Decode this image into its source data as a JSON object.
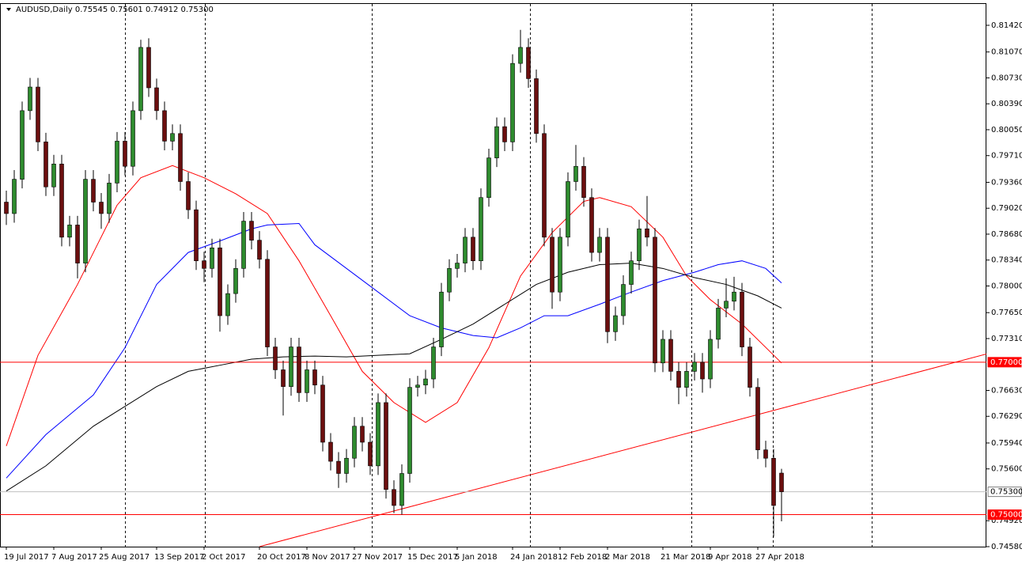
{
  "chart_data": {
    "type": "candlestick",
    "title": "AUDUSD,Daily  0.75545 0.75601 0.74912 0.75300",
    "categories": [
      "19 Jul 2017",
      null,
      null,
      null,
      null,
      null,
      "7 Aug 2017",
      null,
      null,
      null,
      null,
      null,
      "25 Aug 2017",
      null,
      null,
      null,
      null,
      null,
      null,
      "13 Sep 2017",
      null,
      null,
      null,
      null,
      null,
      "2 Oct 2017",
      null,
      null,
      null,
      null,
      null,
      null,
      "20 Oct 2017",
      null,
      null,
      null,
      null,
      null,
      "8 Nov 2017",
      null,
      null,
      null,
      null,
      null,
      "27 Nov 2017",
      null,
      null,
      null,
      null,
      null,
      null,
      "15 Dec 2017",
      null,
      null,
      null,
      null,
      null,
      "5 Jan 2018",
      null,
      null,
      null,
      null,
      null,
      null,
      "24 Jan 2018",
      null,
      null,
      null,
      null,
      null,
      "12 Feb 2018",
      null,
      null,
      null,
      null,
      null,
      "2 Mar 2018",
      null,
      null,
      null,
      null,
      null,
      null,
      "21 Mar 2018",
      null,
      null,
      null,
      null,
      null,
      "9 Apr 2018",
      null,
      null,
      null,
      null,
      null,
      "27 Apr 2018",
      null,
      null,
      null
    ],
    "open": [
      0.791,
      0.7895,
      0.794,
      0.803,
      0.8061,
      0.7989,
      0.793,
      0.796,
      0.7864,
      0.788,
      0.783,
      0.794,
      0.791,
      0.7895,
      0.7935,
      0.799,
      0.7957,
      0.803,
      0.8113,
      0.806,
      0.803,
      0.799,
      0.8,
      0.7937,
      0.79,
      0.7833,
      0.7823,
      0.785,
      0.7761,
      0.779,
      0.7823,
      0.7885,
      0.786,
      0.7835,
      0.772,
      0.769,
      0.7668,
      0.772,
      0.766,
      0.769,
      0.767,
      0.7595,
      0.757,
      0.7554,
      0.7574,
      0.7616,
      0.7595,
      0.7564,
      0.7647,
      0.7533,
      0.7512,
      0.7554,
      0.7667,
      0.767,
      0.7678,
      0.772,
      0.7792,
      0.7823,
      0.783,
      0.7864,
      0.7833,
      0.7916,
      0.7968,
      0.8009,
      0.7989,
      0.8092,
      0.8113,
      0.8072,
      0.8,
      0.7864,
      0.7792,
      0.7864,
      0.7937,
      0.7957,
      0.7916,
      0.7844,
      0.7864,
      0.774,
      0.7761,
      0.7802,
      0.7833,
      0.7875,
      0.7864,
      0.7699,
      0.773,
      0.7688,
      0.7667,
      0.7688,
      0.77,
      0.7678,
      0.773,
      0.7771,
      0.778,
      0.7792,
      0.772,
      0.7667,
      0.7585,
      0.7574,
      0.75545
    ],
    "high": [
      0.7925,
      0.7952,
      0.8042,
      0.8073,
      0.8073,
      0.8001,
      0.7972,
      0.7972,
      0.7892,
      0.7892,
      0.7952,
      0.7952,
      0.7922,
      0.7947,
      0.8002,
      0.8002,
      0.8042,
      0.8123,
      0.8125,
      0.8072,
      0.8042,
      0.8012,
      0.8012,
      0.7949,
      0.7912,
      0.7845,
      0.7862,
      0.7862,
      0.7802,
      0.7835,
      0.7897,
      0.7897,
      0.7872,
      0.7847,
      0.7732,
      0.7702,
      0.7732,
      0.7732,
      0.7702,
      0.7702,
      0.7682,
      0.7607,
      0.7582,
      0.7586,
      0.7628,
      0.7628,
      0.7607,
      0.7659,
      0.7659,
      0.7545,
      0.7566,
      0.7679,
      0.7682,
      0.769,
      0.7732,
      0.7804,
      0.7835,
      0.7842,
      0.7876,
      0.7876,
      0.7928,
      0.798,
      0.8021,
      0.8021,
      0.8104,
      0.8136,
      0.8125,
      0.8084,
      0.8012,
      0.7876,
      0.7876,
      0.7949,
      0.7985,
      0.7969,
      0.7928,
      0.7876,
      0.7876,
      0.7773,
      0.7814,
      0.7845,
      0.7887,
      0.7918,
      0.7876,
      0.7742,
      0.7742,
      0.77,
      0.77,
      0.7712,
      0.7712,
      0.7742,
      0.7783,
      0.781,
      0.7812,
      0.7804,
      0.7732,
      0.7679,
      0.7597,
      0.7586,
      0.75601
    ],
    "low": [
      0.788,
      0.7883,
      0.7928,
      0.8018,
      0.7977,
      0.7918,
      0.7918,
      0.7852,
      0.7852,
      0.781,
      0.7818,
      0.7898,
      0.7875,
      0.7883,
      0.7923,
      0.7945,
      0.7945,
      0.8018,
      0.8048,
      0.8018,
      0.7978,
      0.7978,
      0.7925,
      0.7888,
      0.7821,
      0.7805,
      0.7811,
      0.774,
      0.7749,
      0.7778,
      0.7811,
      0.7848,
      0.7823,
      0.7708,
      0.7678,
      0.763,
      0.7656,
      0.7648,
      0.7648,
      0.7658,
      0.7583,
      0.7558,
      0.7535,
      0.7542,
      0.7562,
      0.7583,
      0.7552,
      0.7552,
      0.7521,
      0.7502,
      0.75,
      0.7542,
      0.7655,
      0.7658,
      0.7666,
      0.7708,
      0.778,
      0.7811,
      0.7818,
      0.7821,
      0.7821,
      0.7904,
      0.7956,
      0.7977,
      0.7977,
      0.808,
      0.806,
      0.7988,
      0.7852,
      0.777,
      0.778,
      0.7852,
      0.7925,
      0.7904,
      0.7832,
      0.7832,
      0.7725,
      0.7728,
      0.7749,
      0.779,
      0.7821,
      0.7852,
      0.7687,
      0.7687,
      0.7676,
      0.7645,
      0.7655,
      0.7676,
      0.766,
      0.7666,
      0.7718,
      0.7759,
      0.7768,
      0.7708,
      0.7655,
      0.7573,
      0.7562,
      0.7471,
      0.74912
    ],
    "close": [
      0.7895,
      0.794,
      0.803,
      0.8061,
      0.7989,
      0.793,
      0.796,
      0.7864,
      0.788,
      0.783,
      0.794,
      0.791,
      0.7895,
      0.7935,
      0.799,
      0.7957,
      0.803,
      0.8113,
      0.806,
      0.803,
      0.799,
      0.8,
      0.7937,
      0.79,
      0.7833,
      0.7823,
      0.785,
      0.7761,
      0.779,
      0.7823,
      0.7885,
      0.786,
      0.7835,
      0.772,
      0.769,
      0.7668,
      0.772,
      0.766,
      0.769,
      0.767,
      0.7595,
      0.757,
      0.7554,
      0.7574,
      0.7616,
      0.7595,
      0.7564,
      0.7647,
      0.7533,
      0.7512,
      0.7554,
      0.7667,
      0.767,
      0.7678,
      0.772,
      0.7792,
      0.7823,
      0.783,
      0.7864,
      0.7833,
      0.7916,
      0.7968,
      0.8009,
      0.7989,
      0.8092,
      0.8113,
      0.8072,
      0.8,
      0.7864,
      0.7792,
      0.7864,
      0.7937,
      0.7957,
      0.7916,
      0.7844,
      0.7864,
      0.774,
      0.7761,
      0.7802,
      0.7833,
      0.7875,
      0.7864,
      0.7699,
      0.773,
      0.7688,
      0.7667,
      0.7688,
      0.77,
      0.7678,
      0.773,
      0.7771,
      0.778,
      0.7792,
      0.772,
      0.7667,
      0.7585,
      0.7574,
      0.7512,
      0.753
    ],
    "up_color": "#2e8b2e",
    "down_color": "#6b0f0f",
    "moving_averages": [
      {
        "color": "#ff0000",
        "x": [
          0,
          4,
          9,
          14,
          17,
          21,
          25,
          29,
          33,
          37,
          41,
          45,
          49,
          53,
          57,
          61,
          65,
          69,
          73,
          75,
          79,
          83,
          86,
          89,
          93,
          98
        ],
        "values": [
          0.759,
          0.7709,
          0.7802,
          0.7906,
          0.7942,
          0.7958,
          0.7942,
          0.7921,
          0.7895,
          0.7833,
          0.7761,
          0.7688,
          0.7647,
          0.7621,
          0.7647,
          0.7719,
          0.7813,
          0.787,
          0.7911,
          0.7916,
          0.7904,
          0.7864,
          0.7813,
          0.7782,
          0.775,
          0.7699
        ]
      },
      {
        "color": "#0000ff",
        "x": [
          0,
          5,
          11,
          15,
          19,
          23,
          27,
          31,
          33,
          37,
          39,
          43,
          47,
          51,
          55,
          59,
          62,
          65,
          68,
          71,
          75,
          79,
          83,
          87,
          90,
          93,
          96,
          98
        ],
        "values": [
          0.7548,
          0.7605,
          0.7657,
          0.7719,
          0.7802,
          0.7844,
          0.7859,
          0.7875,
          0.788,
          0.7882,
          0.7854,
          0.7823,
          0.7792,
          0.7761,
          0.7745,
          0.7735,
          0.7732,
          0.7745,
          0.7761,
          0.7761,
          0.7776,
          0.7792,
          0.7807,
          0.7818,
          0.7828,
          0.7833,
          0.7823,
          0.7804
        ]
      },
      {
        "color": "#000000",
        "x": [
          0,
          5,
          11,
          15,
          19,
          23,
          27,
          31,
          35,
          39,
          43,
          47,
          51,
          55,
          59,
          63,
          67,
          71,
          75,
          79,
          83,
          87,
          91,
          95,
          98
        ],
        "values": [
          0.7531,
          0.7564,
          0.7616,
          0.7642,
          0.7668,
          0.7688,
          0.7696,
          0.7704,
          0.7707,
          0.7708,
          0.7707,
          0.7709,
          0.7711,
          0.773,
          0.775,
          0.7776,
          0.7802,
          0.7818,
          0.7828,
          0.783,
          0.7823,
          0.7811,
          0.7802,
          0.7787,
          0.7771
        ]
      }
    ],
    "trend_line": {
      "color": "#ff0000",
      "x": [
        32,
        124
      ],
      "values": [
        0.7458,
        0.7711
      ]
    },
    "hlines": [
      {
        "value": 0.77,
        "label": "0.77000",
        "color": "#ff0000"
      },
      {
        "value": 0.753,
        "label": "0.75300",
        "color": "#c0c0c0"
      },
      {
        "value": 0.75,
        "label": "0.75000",
        "color": "#ff0000"
      }
    ],
    "ylim": [
      0.7458,
      0.817
    ],
    "yticks": [
      {
        "value": 0.8142,
        "label": "0.81420"
      },
      {
        "value": 0.8107,
        "label": "0.81070"
      },
      {
        "value": 0.8073,
        "label": "0.80730"
      },
      {
        "value": 0.8039,
        "label": "0.80390"
      },
      {
        "value": 0.8005,
        "label": "0.80050"
      },
      {
        "value": 0.7971,
        "label": "0.79710"
      },
      {
        "value": 0.7936,
        "label": "0.79360"
      },
      {
        "value": 0.7902,
        "label": "0.79020"
      },
      {
        "value": 0.7868,
        "label": "0.78680"
      },
      {
        "value": 0.7834,
        "label": "0.78340"
      },
      {
        "value": 0.78,
        "label": "0.78000"
      },
      {
        "value": 0.7765,
        "label": "0.77650"
      },
      {
        "value": 0.7731,
        "label": "0.77310"
      },
      {
        "value": 0.7663,
        "label": "0.76630"
      },
      {
        "value": 0.7629,
        "label": "0.76290"
      },
      {
        "value": 0.7594,
        "label": "0.75940"
      },
      {
        "value": 0.756,
        "label": "0.75600"
      },
      {
        "value": 0.7492,
        "label": "0.74920"
      },
      {
        "value": 0.7458,
        "label": "0.74580"
      }
    ]
  }
}
